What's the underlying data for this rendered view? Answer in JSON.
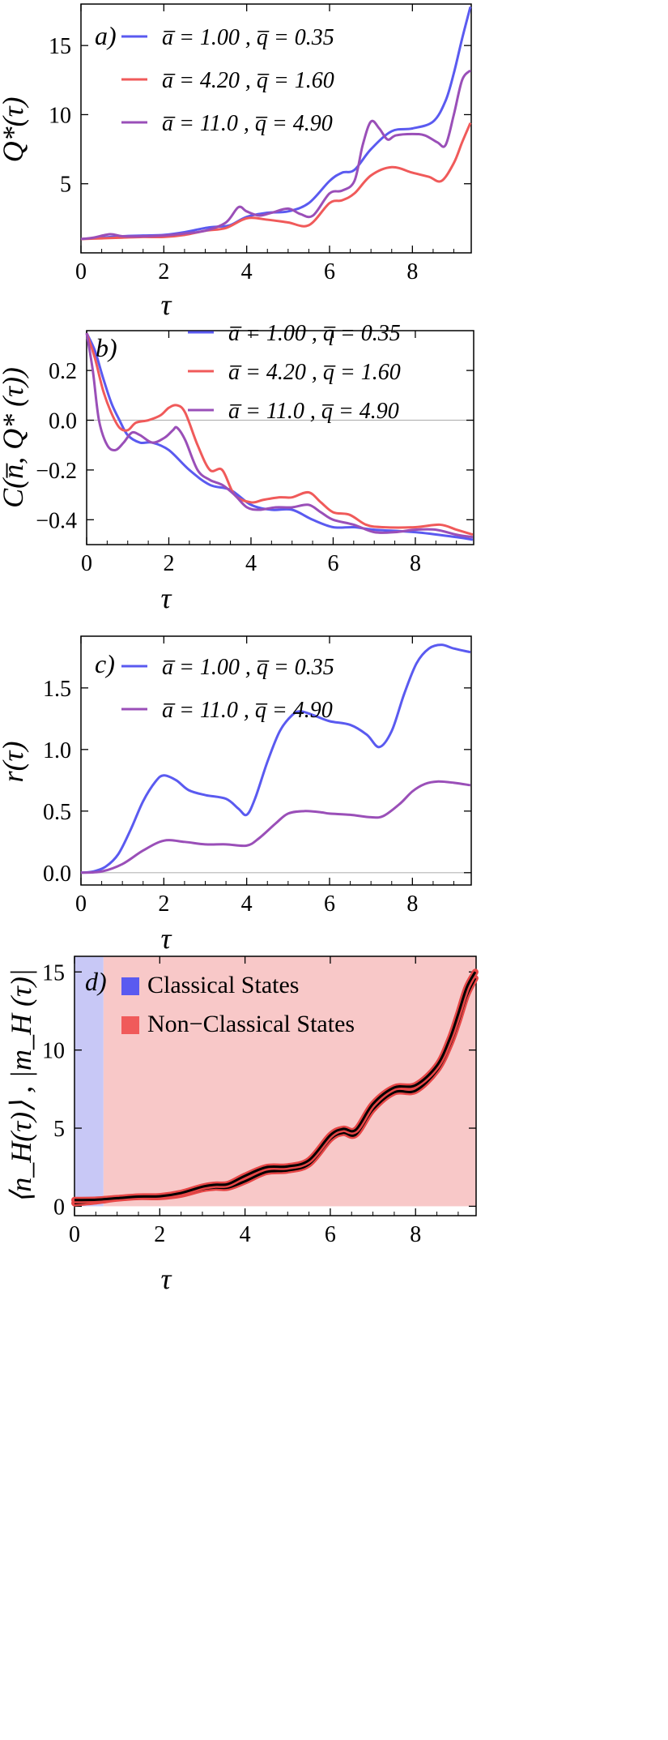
{
  "chart_data": [
    {
      "panel": "a)",
      "type": "line",
      "ylabel": "Q*(τ)",
      "xlabel": "τ",
      "xlim": [
        0,
        9.42
      ],
      "ylim": [
        0,
        18
      ],
      "xticks": [
        0,
        2,
        4,
        6,
        8
      ],
      "yticks": [
        5,
        10,
        15
      ],
      "zero_line": false,
      "legend_placement": "top-left",
      "series": [
        {
          "name": "a̅ = 1.00 ,   q̅ = 0.35",
          "color": "#5a5af0",
          "x": [
            0,
            0.5,
            1,
            1.5,
            2,
            2.5,
            3,
            3.3,
            3.6,
            4,
            4.5,
            5,
            5.5,
            6,
            6.3,
            6.6,
            7,
            7.5,
            8,
            8.5,
            8.8,
            9,
            9.2,
            9.4
          ],
          "y": [
            1.0,
            1.1,
            1.2,
            1.25,
            1.3,
            1.5,
            1.8,
            1.9,
            2.0,
            2.6,
            2.9,
            3.0,
            3.6,
            5.2,
            5.8,
            6.0,
            7.5,
            8.8,
            9.0,
            9.5,
            11,
            13,
            15.5,
            17.8
          ]
        },
        {
          "name": "a̅ = 4.20 ,   q̅ = 1.60",
          "color": "#f05a5a",
          "x": [
            0,
            0.5,
            1,
            1.5,
            2,
            2.5,
            3,
            3.5,
            4,
            4.5,
            5,
            5.5,
            6,
            6.3,
            6.6,
            7,
            7.5,
            8,
            8.4,
            8.7,
            9,
            9.2,
            9.4
          ],
          "y": [
            1.0,
            1.05,
            1.1,
            1.15,
            1.15,
            1.3,
            1.6,
            1.8,
            2.5,
            2.4,
            2.2,
            2.0,
            3.6,
            3.8,
            4.3,
            5.6,
            6.2,
            5.8,
            5.5,
            5.2,
            6.5,
            8,
            9.4
          ]
        },
        {
          "name": "a̅ = 11.0 ,   q̅ = 4.90",
          "color": "#9a4fb8",
          "x": [
            0,
            0.3,
            0.7,
            1,
            1.5,
            2,
            2.5,
            3,
            3.5,
            3.8,
            4,
            4.3,
            4.6,
            5,
            5.3,
            5.6,
            6,
            6.3,
            6.6,
            6.8,
            7,
            7.2,
            7.4,
            7.6,
            8,
            8.3,
            8.6,
            8.8,
            9,
            9.2,
            9.4
          ],
          "y": [
            1.0,
            1.1,
            1.35,
            1.2,
            1.2,
            1.25,
            1.4,
            1.6,
            2.2,
            3.3,
            3.0,
            2.7,
            2.9,
            3.2,
            2.8,
            2.7,
            4.3,
            4.5,
            5.2,
            7.8,
            9.5,
            9.0,
            8.2,
            8.5,
            8.6,
            8.5,
            8.0,
            7.8,
            10,
            12.5,
            13.2
          ]
        }
      ]
    },
    {
      "panel": "b)",
      "type": "line",
      "ylabel": "C(n̅, Q* (τ))",
      "xlabel": "τ",
      "xlim": [
        0,
        9.42
      ],
      "ylim": [
        -0.5,
        0.36
      ],
      "xticks": [
        0,
        2,
        4,
        6,
        8
      ],
      "yticks": [
        -0.4,
        -0.2,
        0.0,
        0.2
      ],
      "zero_line": true,
      "legend_placement": "top",
      "series": [
        {
          "name": "a̅ = 1.00 ,   q̅ = 0.35",
          "color": "#5a5af0",
          "x": [
            0,
            0.2,
            0.4,
            0.6,
            0.8,
            1,
            1.3,
            1.6,
            2,
            2.5,
            3,
            3.5,
            4,
            4.5,
            5,
            5.5,
            6,
            6.5,
            7,
            8,
            9,
            9.4
          ],
          "y": [
            0.35,
            0.28,
            0.17,
            0.07,
            0.0,
            -0.06,
            -0.09,
            -0.09,
            -0.12,
            -0.2,
            -0.26,
            -0.28,
            -0.34,
            -0.36,
            -0.36,
            -0.4,
            -0.43,
            -0.43,
            -0.44,
            -0.45,
            -0.47,
            -0.48
          ]
        },
        {
          "name": "a̅ = 4.20 ,   q̅ = 1.60",
          "color": "#f05a5a",
          "x": [
            0,
            0.2,
            0.4,
            0.6,
            0.8,
            1,
            1.2,
            1.5,
            1.8,
            2,
            2.2,
            2.4,
            2.7,
            3,
            3.3,
            3.6,
            4,
            4.3,
            4.7,
            5,
            5.4,
            5.7,
            6,
            6.4,
            6.8,
            7.2,
            8,
            8.6,
            9,
            9.4
          ],
          "y": [
            0.35,
            0.25,
            0.12,
            0.03,
            -0.03,
            -0.04,
            -0.01,
            0.0,
            0.02,
            0.05,
            0.06,
            0.03,
            -0.1,
            -0.2,
            -0.2,
            -0.3,
            -0.33,
            -0.32,
            -0.31,
            -0.31,
            -0.29,
            -0.33,
            -0.37,
            -0.38,
            -0.42,
            -0.43,
            -0.43,
            -0.42,
            -0.44,
            -0.46
          ]
        },
        {
          "name": "a̅ = 11.0 ,   q̅ = 4.90",
          "color": "#9a4fb8",
          "x": [
            0,
            0.15,
            0.3,
            0.5,
            0.7,
            0.9,
            1.1,
            1.3,
            1.6,
            1.9,
            2.1,
            2.2,
            2.4,
            2.7,
            3,
            3.3,
            3.6,
            3.9,
            4.2,
            4.6,
            5,
            5.4,
            5.7,
            6,
            6.5,
            7,
            7.5,
            8,
            8.5,
            9,
            9.4
          ],
          "y": [
            0.35,
            0.2,
            0.0,
            -0.1,
            -0.12,
            -0.09,
            -0.05,
            -0.06,
            -0.09,
            -0.07,
            -0.04,
            -0.03,
            -0.08,
            -0.2,
            -0.24,
            -0.26,
            -0.3,
            -0.35,
            -0.36,
            -0.35,
            -0.35,
            -0.34,
            -0.37,
            -0.4,
            -0.42,
            -0.45,
            -0.45,
            -0.44,
            -0.44,
            -0.46,
            -0.47
          ]
        }
      ]
    },
    {
      "panel": "c)",
      "type": "line",
      "ylabel": "r(τ)",
      "xlabel": "τ",
      "xlim": [
        0,
        9.42
      ],
      "ylim": [
        -0.1,
        1.92
      ],
      "xticks": [
        0,
        2,
        4,
        6,
        8
      ],
      "yticks": [
        0.0,
        0.5,
        1.0,
        1.5
      ],
      "zero_line": true,
      "legend_placement": "top-left",
      "series": [
        {
          "name": "a̅ = 1.00 ,   q̅ = 0.35",
          "color": "#5a5af0",
          "x": [
            0,
            0.3,
            0.6,
            0.9,
            1.2,
            1.5,
            1.8,
            2,
            2.3,
            2.6,
            3,
            3.5,
            3.8,
            4,
            4.2,
            4.5,
            4.8,
            5.1,
            5.3,
            5.6,
            6,
            6.5,
            6.9,
            7.2,
            7.5,
            7.8,
            8.1,
            8.4,
            8.7,
            9,
            9.4
          ],
          "y": [
            0,
            0.01,
            0.05,
            0.15,
            0.35,
            0.58,
            0.74,
            0.79,
            0.75,
            0.67,
            0.63,
            0.6,
            0.52,
            0.47,
            0.6,
            0.9,
            1.15,
            1.28,
            1.31,
            1.28,
            1.23,
            1.2,
            1.12,
            1.02,
            1.15,
            1.45,
            1.7,
            1.82,
            1.85,
            1.82,
            1.79
          ]
        },
        {
          "name": "a̅ = 11.0 ,   q̅ = 4.90",
          "color": "#9a4fb8",
          "x": [
            0,
            0.5,
            1,
            1.5,
            2,
            2.5,
            3,
            3.5,
            4,
            4.3,
            4.7,
            5,
            5.4,
            5.8,
            6,
            6.5,
            7,
            7.3,
            7.7,
            8,
            8.3,
            8.6,
            9,
            9.4
          ],
          "y": [
            0,
            0.01,
            0.07,
            0.18,
            0.26,
            0.25,
            0.23,
            0.23,
            0.22,
            0.28,
            0.4,
            0.48,
            0.5,
            0.49,
            0.48,
            0.47,
            0.45,
            0.46,
            0.56,
            0.66,
            0.72,
            0.74,
            0.73,
            0.71
          ]
        }
      ]
    },
    {
      "panel": "d)",
      "type": "area",
      "ylabel": "⟨n_H(τ)⟩ ,   |m_H (τ)|",
      "xlabel": "τ",
      "xlim": [
        0,
        9.42
      ],
      "ylim": [
        -0.6,
        16
      ],
      "xticks": [
        0,
        2,
        4,
        6,
        8
      ],
      "yticks": [
        0,
        5,
        10,
        15
      ],
      "zero_line": false,
      "legend_placement": "top-left",
      "regions": [
        {
          "name": "Classical States",
          "color": "#c8c8f6",
          "swatch": "#5a5af0",
          "x_from": 0,
          "x_to": 0.68
        },
        {
          "name": "Non−Classical States",
          "color": "#f8c8c8",
          "swatch": "#f05a5a",
          "x_from": 0.68,
          "x_to": 9.42
        }
      ],
      "series": [
        {
          "name": "⟨n_H(τ)⟩",
          "color": "#000000",
          "x": [
            0,
            0.5,
            1,
            1.5,
            2,
            2.5,
            3,
            3.3,
            3.6,
            4,
            4.5,
            5,
            5.5,
            6,
            6.3,
            6.6,
            7,
            7.5,
            8,
            8.5,
            8.8,
            9,
            9.2,
            9.4
          ],
          "y": [
            0.2,
            0.32,
            0.5,
            0.6,
            0.6,
            0.75,
            1.1,
            1.2,
            1.2,
            1.6,
            2.2,
            2.3,
            2.7,
            4.3,
            4.7,
            4.6,
            6.2,
            7.3,
            7.4,
            8.7,
            10.3,
            11.8,
            13.5,
            14.6
          ]
        },
        {
          "name": "|m_H (τ)|",
          "color": "#000000",
          "x": [
            0,
            0.5,
            1,
            1.5,
            2,
            2.5,
            3,
            3.3,
            3.6,
            4,
            4.5,
            5,
            5.5,
            6,
            6.3,
            6.6,
            7,
            7.5,
            8,
            8.5,
            8.8,
            9,
            9.2,
            9.4
          ],
          "y": [
            0.4,
            0.42,
            0.52,
            0.62,
            0.64,
            0.85,
            1.25,
            1.38,
            1.42,
            1.95,
            2.5,
            2.55,
            2.95,
            4.55,
            4.95,
            4.9,
            6.55,
            7.6,
            7.75,
            9.0,
            10.7,
            12.3,
            14.0,
            15.0
          ]
        }
      ]
    }
  ]
}
